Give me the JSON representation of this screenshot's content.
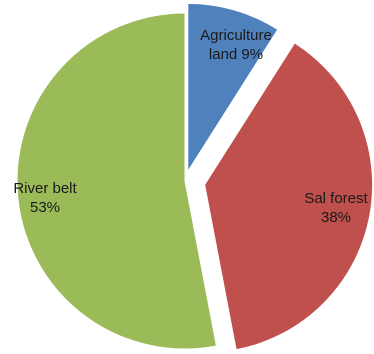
{
  "chart_data": {
    "type": "pie",
    "title": "",
    "exploded": true,
    "slices": [
      {
        "label": "Agriculture land",
        "value": 9,
        "display": "9%",
        "color": "#4F81BD",
        "label_lines": [
          "Agriculture",
          "land 9%"
        ]
      },
      {
        "label": "Sal forest",
        "value": 38,
        "display": "38%",
        "color": "#C0504D",
        "label_lines": [
          "Sal forest",
          "38%"
        ]
      },
      {
        "label": "River belt",
        "value": 53,
        "display": "53%",
        "color": "#9BBB59",
        "label_lines": [
          "River belt",
          "53%"
        ]
      }
    ]
  }
}
